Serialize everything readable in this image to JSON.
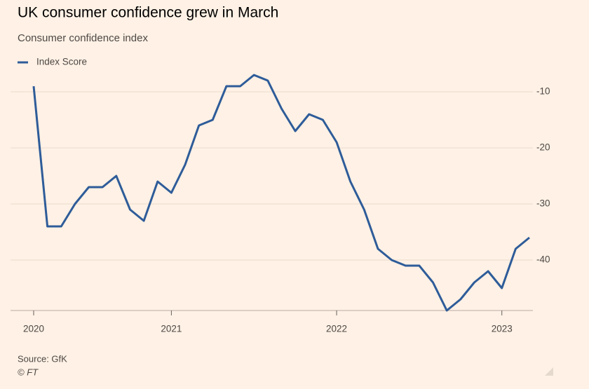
{
  "chart_data": {
    "type": "line",
    "title": "UK consumer confidence grew in March",
    "subtitle": "Consumer confidence index",
    "categories": [
      "2020",
      null,
      null,
      null,
      null,
      null,
      null,
      null,
      null,
      null,
      "2021",
      null,
      null,
      null,
      null,
      null,
      null,
      null,
      null,
      null,
      null,
      null,
      "2022",
      null,
      null,
      null,
      null,
      null,
      null,
      null,
      null,
      null,
      null,
      null,
      "2023",
      null,
      null
    ],
    "series": [
      {
        "name": "Index Score",
        "color": "#2e5c99",
        "values": [
          -9,
          -34,
          -34,
          -30,
          -27,
          -27,
          -25,
          -31,
          -33,
          -26,
          -28,
          -23,
          -16,
          -15,
          -9,
          -9,
          -7,
          -8,
          -13,
          -17,
          -14,
          -15,
          -19,
          -26,
          -31,
          -38,
          -40,
          -41,
          -41,
          -44,
          -49,
          -47,
          -44,
          -42,
          -45,
          -38,
          -36
        ]
      }
    ],
    "ylim": [
      -49,
      -5
    ],
    "yticks": [
      -10,
      -20,
      -30,
      -40
    ],
    "grid": true,
    "source": "Source: GfK",
    "credit": "© FT"
  }
}
